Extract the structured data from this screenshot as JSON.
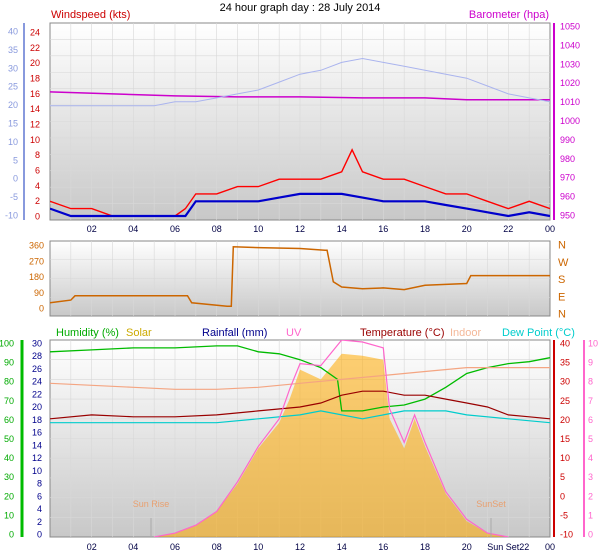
{
  "title": "24 hour graph day : 28 July 2014",
  "colors": {
    "windspeed": "#ff0000",
    "wind_avg": "#0000cc",
    "barometer": "#cc00cc",
    "baro_hi": "#aab4ee",
    "wind_dir": "#cc6600",
    "humidity": "#00bb00",
    "solar": "#ffaa00",
    "rainfall": "#00008b",
    "uv": "#ff66cc",
    "temperature": "#990000",
    "indoor": "#f4a582",
    "dew_point": "#00cccc"
  },
  "chart_data": [
    {
      "type": "line",
      "panel": "wind_baro",
      "labels": {
        "left": "Windspeed (kts)",
        "right": "Barometer (hpa)"
      },
      "left_axis_ticks": [
        "40",
        "35",
        "30",
        "25",
        "20",
        "15",
        "10",
        "5",
        "0",
        "-5",
        "-10"
      ],
      "left_ylim": [
        -10,
        40
      ],
      "inner_ticks": [
        "24",
        "22",
        "20",
        "18",
        "16",
        "14",
        "12",
        "10",
        "8",
        "6",
        "4",
        "2",
        "0"
      ],
      "inner_ylim": [
        0,
        25
      ],
      "right_axis_ticks": [
        "1050",
        "1040",
        "1030",
        "1020",
        "1010",
        "1000",
        "990",
        "980",
        "970",
        "960",
        "950"
      ],
      "right_ylim": [
        950,
        1050
      ],
      "x_ticks": [
        "02",
        "04",
        "06",
        "08",
        "10",
        "12",
        "14",
        "16",
        "18",
        "20",
        "22",
        "00"
      ],
      "series": [
        {
          "name": "Barometer",
          "key": "barometer",
          "axis": "right",
          "points": [
            [
              0,
              1015
            ],
            [
              3,
              1014
            ],
            [
              6,
              1013
            ],
            [
              9,
              1012.5
            ],
            [
              12,
              1012.5
            ],
            [
              15,
              1012
            ],
            [
              18,
              1012
            ],
            [
              20,
              1011
            ],
            [
              22,
              1011
            ],
            [
              24,
              1011
            ]
          ]
        },
        {
          "key": "baro_hi",
          "axis": "left",
          "points": [
            [
              0,
              19
            ],
            [
              1,
              19
            ],
            [
              2,
              19
            ],
            [
              3,
              19
            ],
            [
              4,
              19
            ],
            [
              5,
              19
            ],
            [
              6,
              20
            ],
            [
              7,
              20
            ],
            [
              8,
              21
            ],
            [
              9,
              22
            ],
            [
              10,
              23
            ],
            [
              11,
              25
            ],
            [
              12,
              27
            ],
            [
              13,
              28
            ],
            [
              14,
              30
            ],
            [
              15,
              31
            ],
            [
              16,
              30
            ],
            [
              17,
              29
            ],
            [
              18,
              28
            ],
            [
              19,
              27
            ],
            [
              20,
              26
            ],
            [
              21,
              24
            ],
            [
              22,
              22
            ],
            [
              23,
              21
            ],
            [
              24,
              20
            ]
          ]
        },
        {
          "key": "windspeed",
          "axis": "inner",
          "points": [
            [
              0,
              2
            ],
            [
              1,
              1
            ],
            [
              2,
              1
            ],
            [
              3,
              0
            ],
            [
              4,
              0
            ],
            [
              5,
              0
            ],
            [
              6,
              0
            ],
            [
              6.5,
              1
            ],
            [
              7,
              3
            ],
            [
              8,
              3
            ],
            [
              9,
              4
            ],
            [
              10,
              4
            ],
            [
              11,
              5
            ],
            [
              12,
              5
            ],
            [
              13,
              5
            ],
            [
              14,
              6
            ],
            [
              14.5,
              9
            ],
            [
              15,
              6
            ],
            [
              16,
              5
            ],
            [
              17,
              5
            ],
            [
              18,
              4
            ],
            [
              19,
              3
            ],
            [
              20,
              3
            ],
            [
              21,
              2
            ],
            [
              22,
              1
            ],
            [
              23,
              2
            ],
            [
              24,
              1
            ]
          ]
        },
        {
          "key": "wind_avg",
          "axis": "inner",
          "points": [
            [
              0,
              1
            ],
            [
              1,
              0
            ],
            [
              2,
              0
            ],
            [
              3,
              0
            ],
            [
              4,
              0
            ],
            [
              5,
              0
            ],
            [
              6,
              0
            ],
            [
              6.5,
              0
            ],
            [
              7,
              2
            ],
            [
              8,
              2
            ],
            [
              9,
              2
            ],
            [
              10,
              2
            ],
            [
              11,
              2.5
            ],
            [
              12,
              3
            ],
            [
              13,
              3
            ],
            [
              14,
              3
            ],
            [
              15,
              2.5
            ],
            [
              16,
              2
            ],
            [
              17,
              2
            ],
            [
              18,
              2
            ],
            [
              19,
              1.5
            ],
            [
              20,
              1
            ],
            [
              21,
              0.5
            ],
            [
              22,
              0
            ],
            [
              23,
              0.5
            ],
            [
              24,
              0
            ]
          ]
        }
      ]
    },
    {
      "type": "line",
      "panel": "wind_dir",
      "left_axis_ticks": [
        "360",
        "270",
        "180",
        "90",
        "0"
      ],
      "ylim": [
        0,
        360
      ],
      "right_axis_ticks": [
        "N",
        "W",
        "S",
        "E",
        "N"
      ],
      "series": [
        {
          "key": "wind_dir",
          "points": [
            [
              0,
              30
            ],
            [
              1,
              45
            ],
            [
              1.2,
              70
            ],
            [
              3,
              70
            ],
            [
              5,
              70
            ],
            [
              6.6,
              70
            ],
            [
              6.8,
              30
            ],
            [
              8.5,
              10
            ],
            [
              8.7,
              10
            ],
            [
              8.8,
              350
            ],
            [
              10,
              345
            ],
            [
              12,
              340
            ],
            [
              13.2,
              330
            ],
            [
              13.3,
              330
            ],
            [
              13.6,
              150
            ],
            [
              14,
              120
            ],
            [
              15,
              110
            ],
            [
              16,
              115
            ],
            [
              17,
              105
            ],
            [
              18,
              130
            ],
            [
              19,
              135
            ],
            [
              20,
              140
            ],
            [
              20.2,
              185
            ],
            [
              22,
              185
            ],
            [
              24,
              185
            ]
          ]
        }
      ]
    },
    {
      "type": "line",
      "panel": "temp_hum",
      "labels": {
        "humidity": "Humidity (%)",
        "solar": "Solar",
        "rainfall": "Rainfall (mm)",
        "uv": "UV",
        "temperature": "Temperature (°C)",
        "indoor": "Indoor",
        "dew_point": "Dew Point (°C)"
      },
      "humidity_ticks": [
        "100",
        "90",
        "80",
        "70",
        "60",
        "50",
        "40",
        "30",
        "20",
        "10",
        "0"
      ],
      "humidity_ylim": [
        0,
        100
      ],
      "inner_ticks": [
        "30",
        "28",
        "26",
        "24",
        "22",
        "20",
        "18",
        "16",
        "14",
        "12",
        "10",
        "8",
        "6",
        "4",
        "2",
        "0"
      ],
      "temp_ticks": [
        "40",
        "35",
        "30",
        "25",
        "20",
        "15",
        "10",
        "5",
        "0",
        "-5",
        "-10"
      ],
      "temp_ylim": [
        -10,
        40
      ],
      "uv_ticks": [
        "10",
        "9",
        "8",
        "7",
        "6",
        "5",
        "4",
        "3",
        "2",
        "1",
        "0"
      ],
      "x_ticks": [
        "02",
        "04",
        "06",
        "08",
        "10",
        "12",
        "14",
        "16",
        "18",
        "20",
        "00"
      ],
      "annotations": {
        "sunrise": "Sun Rise",
        "sunset": "SunSet",
        "sunset_x": "Sun Set22"
      },
      "series": [
        {
          "key": "humidity",
          "axis": "humidity",
          "points": [
            [
              0,
              94
            ],
            [
              2,
              95
            ],
            [
              4,
              96
            ],
            [
              6,
              96
            ],
            [
              8,
              97
            ],
            [
              9,
              97
            ],
            [
              10,
              94
            ],
            [
              11,
              93
            ],
            [
              12,
              90
            ],
            [
              13,
              86
            ],
            [
              13.8,
              80
            ],
            [
              14,
              64
            ],
            [
              15,
              64
            ],
            [
              16,
              66
            ],
            [
              17,
              67
            ],
            [
              18,
              70
            ],
            [
              19,
              76
            ],
            [
              20,
              83
            ],
            [
              21,
              86
            ],
            [
              22,
              88
            ],
            [
              23,
              89
            ],
            [
              24,
              91
            ]
          ]
        },
        {
          "key": "indoor",
          "axis": "temp",
          "points": [
            [
              0,
              29
            ],
            [
              2,
              28.5
            ],
            [
              4,
              28
            ],
            [
              6,
              27.5
            ],
            [
              8,
              27.5
            ],
            [
              10,
              28
            ],
            [
              12,
              29
            ],
            [
              14,
              30
            ],
            [
              16,
              31
            ],
            [
              18,
              32
            ],
            [
              20,
              33
            ],
            [
              22,
              33
            ],
            [
              24,
              33
            ]
          ]
        },
        {
          "key": "temperature",
          "axis": "temp",
          "points": [
            [
              0,
              20
            ],
            [
              2,
              21
            ],
            [
              4,
              20.5
            ],
            [
              6,
              20.5
            ],
            [
              8,
              21
            ],
            [
              10,
              22
            ],
            [
              12,
              23
            ],
            [
              13,
              24
            ],
            [
              14,
              26
            ],
            [
              15,
              27
            ],
            [
              16,
              27
            ],
            [
              17,
              26
            ],
            [
              18,
              26
            ],
            [
              19,
              25
            ],
            [
              20,
              24
            ],
            [
              21,
              23
            ],
            [
              22,
              21
            ],
            [
              23,
              20.5
            ],
            [
              24,
              20
            ]
          ]
        },
        {
          "key": "dew_point",
          "axis": "temp",
          "points": [
            [
              0,
              19
            ],
            [
              2,
              19
            ],
            [
              4,
              19
            ],
            [
              6,
              19
            ],
            [
              8,
              19
            ],
            [
              10,
              20
            ],
            [
              12,
              21
            ],
            [
              13,
              22
            ],
            [
              14,
              21
            ],
            [
              15,
              20
            ],
            [
              16,
              21
            ],
            [
              17,
              22
            ],
            [
              18,
              22
            ],
            [
              19,
              22
            ],
            [
              20,
              21
            ],
            [
              22,
              20
            ],
            [
              24,
              19
            ]
          ]
        },
        {
          "key": "solar",
          "axis": "uv",
          "area": true,
          "points": [
            [
              5,
              0
            ],
            [
              6,
              0.2
            ],
            [
              7,
              0.6
            ],
            [
              8,
              1.3
            ],
            [
              9,
              2.7
            ],
            [
              10,
              4.5
            ],
            [
              11,
              5.8
            ],
            [
              11.5,
              7
            ],
            [
              12,
              8.5
            ],
            [
              13,
              8
            ],
            [
              14,
              9.3
            ],
            [
              15,
              9.2
            ],
            [
              16,
              9
            ],
            [
              16.3,
              6
            ],
            [
              17,
              4.5
            ],
            [
              17.5,
              6
            ],
            [
              18,
              4.6
            ],
            [
              19,
              2.2
            ],
            [
              20,
              0.8
            ],
            [
              21,
              0.2
            ],
            [
              22,
              0
            ]
          ]
        },
        {
          "key": "uv",
          "axis": "uv",
          "points": [
            [
              5,
              0
            ],
            [
              6,
              0.2
            ],
            [
              7,
              0.6
            ],
            [
              8,
              1.3
            ],
            [
              9,
              2.8
            ],
            [
              10,
              4.6
            ],
            [
              11,
              6
            ],
            [
              11.5,
              7.5
            ],
            [
              12,
              8.8
            ],
            [
              13,
              8.7
            ],
            [
              14,
              10
            ],
            [
              15,
              9.9
            ],
            [
              16,
              9.6
            ],
            [
              16.3,
              6.5
            ],
            [
              17,
              4.8
            ],
            [
              17.5,
              6.2
            ],
            [
              18,
              4.8
            ],
            [
              19,
              2.3
            ],
            [
              20,
              0.9
            ],
            [
              21,
              0.2
            ],
            [
              22,
              0
            ]
          ]
        }
      ]
    }
  ]
}
